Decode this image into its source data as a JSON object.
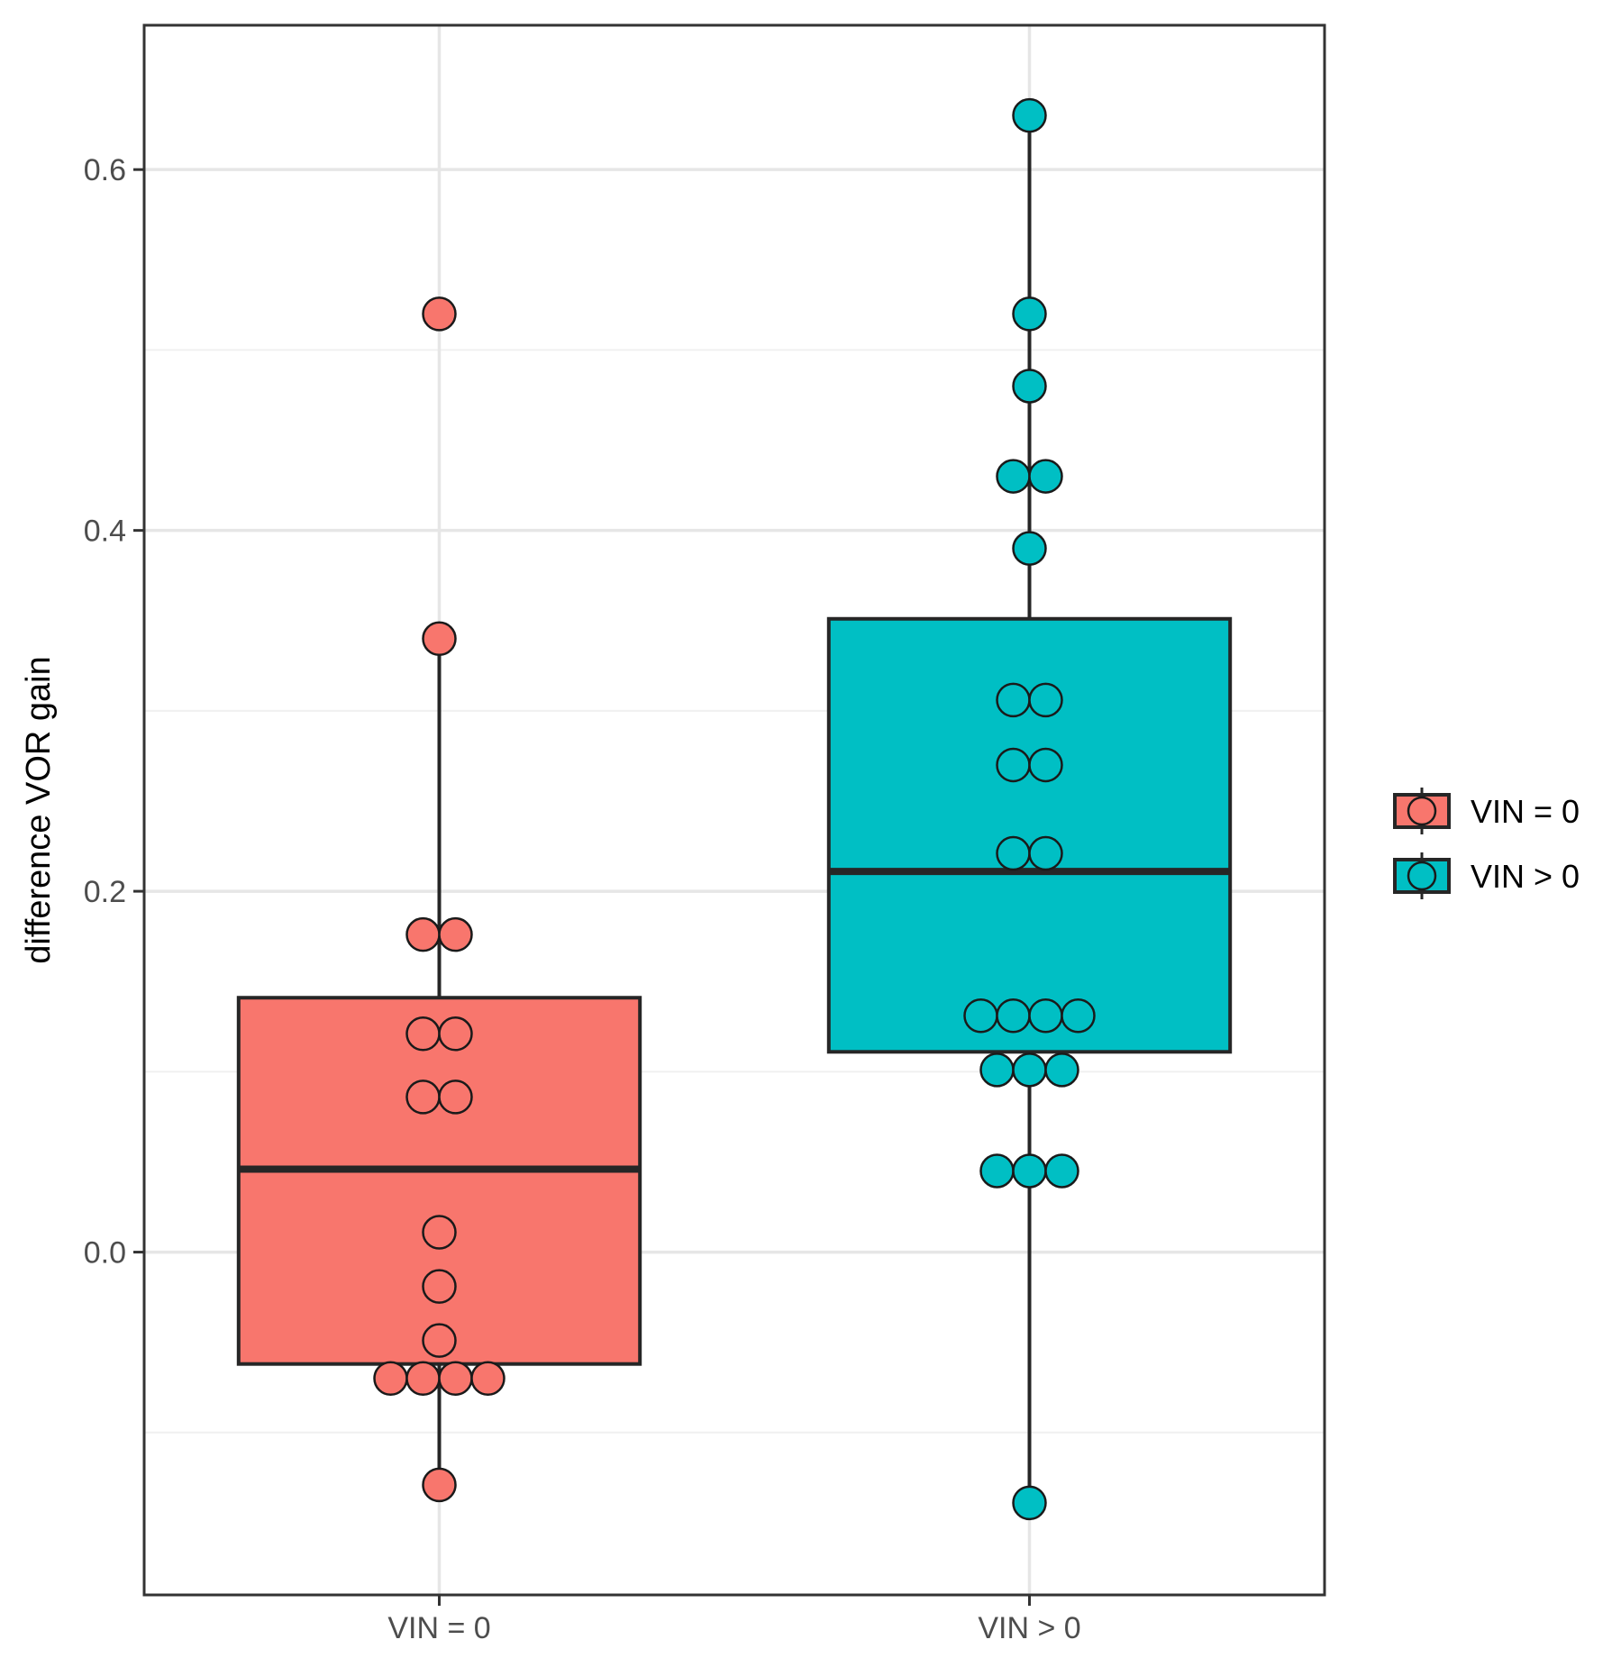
{
  "chart_data": {
    "type": "box",
    "title": "",
    "xlabel": "",
    "ylabel": "difference VOR gain",
    "ylim": [
      -0.19,
      0.68
    ],
    "yticks": [
      0.0,
      0.2,
      0.4,
      0.6
    ],
    "ytick_labels": [
      "0.0",
      "0.2",
      "0.4",
      "0.6"
    ],
    "grid": true,
    "legend_position": "right",
    "categories": [
      "VIN = 0",
      "VIN > 0"
    ],
    "series": [
      {
        "name": "VIN = 0",
        "color": "#F8766D",
        "box": {
          "q1": -0.062,
          "median": 0.046,
          "q3": 0.141,
          "whisker_low": -0.129,
          "whisker_high": 0.34
        },
        "points": [
          {
            "y": 0.52,
            "n": 1
          },
          {
            "y": 0.34,
            "n": 1
          },
          {
            "y": 0.176,
            "n": 2
          },
          {
            "y": 0.121,
            "n": 2
          },
          {
            "y": 0.086,
            "n": 2
          },
          {
            "y": 0.011,
            "n": 1
          },
          {
            "y": -0.019,
            "n": 1
          },
          {
            "y": -0.049,
            "n": 1
          },
          {
            "y": -0.07,
            "n": 4
          },
          {
            "y": -0.129,
            "n": 1
          }
        ]
      },
      {
        "name": "VIN > 0",
        "color": "#00BFC4",
        "box": {
          "q1": 0.111,
          "median": 0.211,
          "q3": 0.351,
          "whisker_low": -0.139,
          "whisker_high": 0.63
        },
        "points": [
          {
            "y": 0.63,
            "n": 1
          },
          {
            "y": 0.52,
            "n": 1
          },
          {
            "y": 0.48,
            "n": 1
          },
          {
            "y": 0.43,
            "n": 2
          },
          {
            "y": 0.39,
            "n": 1
          },
          {
            "y": 0.306,
            "n": 2
          },
          {
            "y": 0.27,
            "n": 2
          },
          {
            "y": 0.221,
            "n": 2
          },
          {
            "y": 0.131,
            "n": 4
          },
          {
            "y": 0.101,
            "n": 3
          },
          {
            "y": 0.045,
            "n": 3
          },
          {
            "y": -0.139,
            "n": 1
          }
        ]
      }
    ]
  }
}
